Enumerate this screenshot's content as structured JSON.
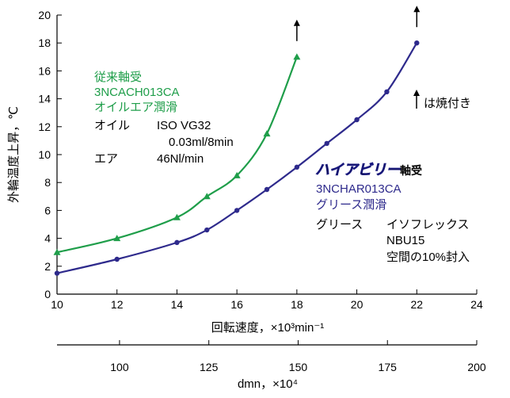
{
  "chart_data": {
    "type": "line",
    "ylabel": "外輪温度上昇，℃",
    "xlabel": "回転速度，×10³min⁻¹",
    "x_range": [
      10,
      24
    ],
    "y_range": [
      0,
      20
    ],
    "x_ticks": [
      "10",
      "12",
      "14",
      "16",
      "18",
      "20",
      "22",
      "24"
    ],
    "y_ticks": [
      "0",
      "2",
      "4",
      "6",
      "8",
      "10",
      "12",
      "14",
      "16",
      "18",
      "20"
    ],
    "secondary_axis": {
      "label": "dmn，×10⁴",
      "range": [
        82.5,
        200
      ],
      "ticks": [
        "100",
        "125",
        "150",
        "175",
        "200"
      ]
    },
    "series": [
      {
        "name": "従来軸受 3NCACH013CA",
        "color": "#1f9e4a",
        "marker": "triangle",
        "x": [
          10,
          12,
          14,
          15,
          16,
          17,
          18
        ],
        "y": [
          3.0,
          4.0,
          5.5,
          7.0,
          8.5,
          11.5,
          17.0
        ],
        "seized_at_end": true
      },
      {
        "name": "ハイアビリー軸受 3NCHAR013CA",
        "color": "#2e2a8c",
        "marker": "circle",
        "x": [
          10,
          12,
          14,
          15,
          16,
          17,
          18,
          19,
          20,
          21,
          22
        ],
        "y": [
          1.5,
          2.5,
          3.7,
          4.6,
          6.0,
          7.5,
          9.1,
          10.8,
          12.5,
          14.5,
          18.0
        ],
        "seized_at_end": true
      }
    ],
    "annotations": {
      "conv_title": "従来軸受",
      "conv_model": "3NCACH013CA",
      "conv_lubrication": "オイルエア潤滑",
      "oil_label": "オイル",
      "oil_value": "ISO VG32",
      "oil_amount": "0.03ml/8min",
      "air_label": "エア",
      "air_value": "46Nl/min",
      "brand_logo_text": "ハイアビリー",
      "brand_suffix": "軸受",
      "hab_model": "3NCHAR013CA",
      "hab_lubrication": "グリース潤滑",
      "grease_label": "グリース",
      "grease_value": "イソフレックス",
      "grease_value2": "NBU15",
      "fill_ratio": "空間の10%封入",
      "seizure_note": "は焼付き"
    },
    "legend": "none",
    "grid": false
  }
}
